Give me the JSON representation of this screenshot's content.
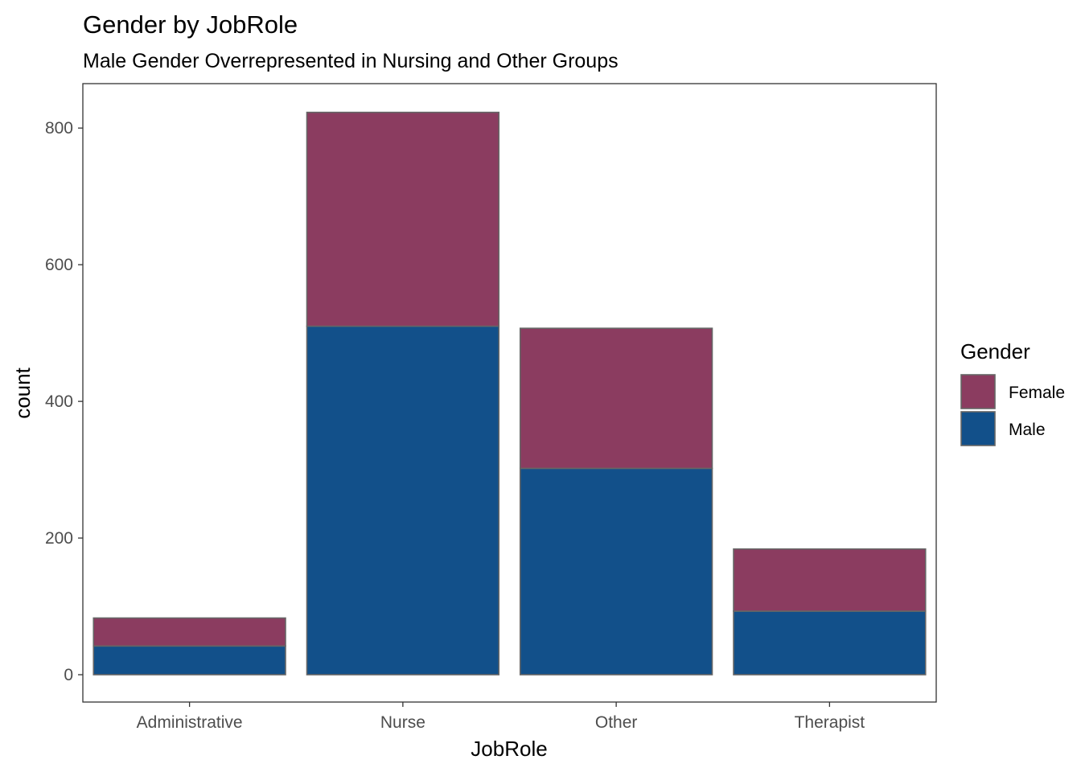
{
  "chart_data": {
    "type": "bar",
    "stacked": true,
    "title": "Gender by JobRole",
    "subtitle": "Male Gender Overrepresented in Nursing and Other Groups",
    "xlabel": "JobRole",
    "ylabel": "count",
    "categories": [
      "Administrative",
      "Nurse",
      "Other",
      "Therapist"
    ],
    "series": [
      {
        "name": "Male",
        "values": [
          42,
          510,
          302,
          93
        ],
        "color": "#12508a"
      },
      {
        "name": "Female",
        "values": [
          41,
          313,
          205,
          91
        ],
        "color": "#8b3c60"
      }
    ],
    "ylim": [
      -40,
      865
    ],
    "yticks": [
      0,
      200,
      400,
      600,
      800
    ],
    "ytick_labels": [
      "0",
      "200",
      "400",
      "600",
      "800"
    ],
    "grid": false,
    "legend": {
      "title": "Gender",
      "position": "right",
      "entries": [
        {
          "label": "Female",
          "color": "#8b3c60"
        },
        {
          "label": "Male",
          "color": "#12508a"
        }
      ]
    },
    "bar_outline_color": "#666666"
  }
}
